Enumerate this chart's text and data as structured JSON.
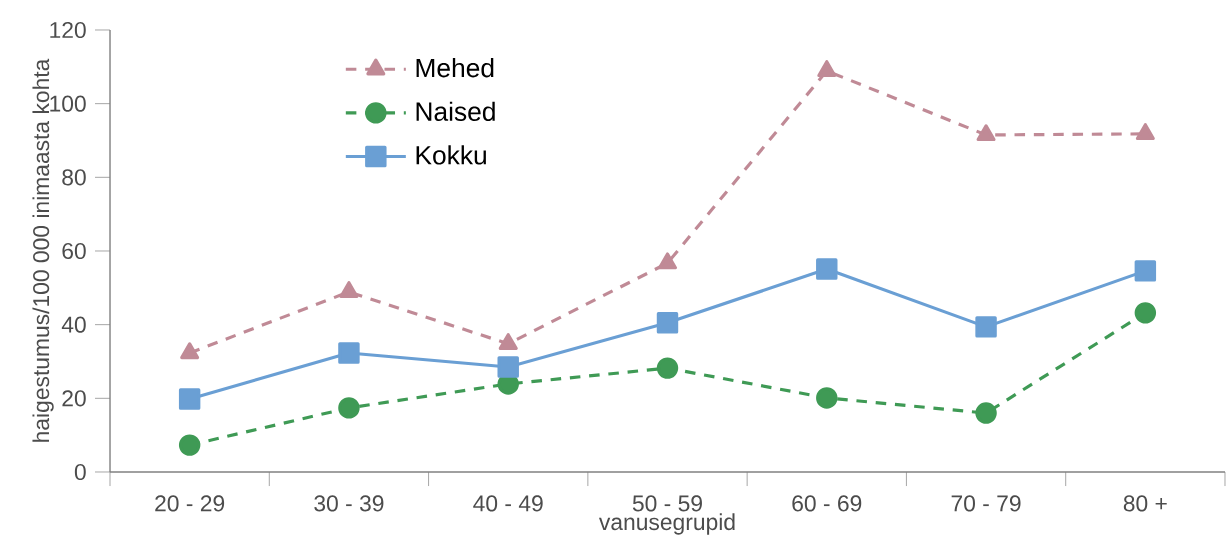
{
  "chart_data": {
    "type": "line",
    "xlabel": "vanusegrupid",
    "ylabel": "haigestumus/100 000 inimaasta kohta",
    "categories": [
      "20 - 29",
      "30 - 39",
      "40 - 49",
      "50 - 59",
      "60 - 69",
      "70 - 79",
      "80 +"
    ],
    "series": [
      {
        "name": "Mehed",
        "color": "#c08a96",
        "marker": "triangle",
        "line_style": "dashed",
        "values": [
          32.3,
          48.9,
          34.8,
          56.7,
          108.9,
          91.5,
          91.8
        ]
      },
      {
        "name": "Naised",
        "color": "#3f9a55",
        "marker": "circle",
        "line_style": "dashed",
        "values": [
          7.3,
          17.4,
          23.9,
          28.2,
          20.1,
          16.0,
          43.2
        ]
      },
      {
        "name": "Kokku",
        "color": "#6a9fd4",
        "marker": "square",
        "line_style": "solid",
        "values": [
          19.8,
          32.3,
          28.5,
          40.5,
          55.1,
          39.4,
          54.6
        ]
      }
    ],
    "ylim": [
      0,
      120
    ],
    "yticks": [
      0,
      20,
      40,
      60,
      80,
      100,
      120
    ],
    "grid": false,
    "legend": "top left"
  }
}
